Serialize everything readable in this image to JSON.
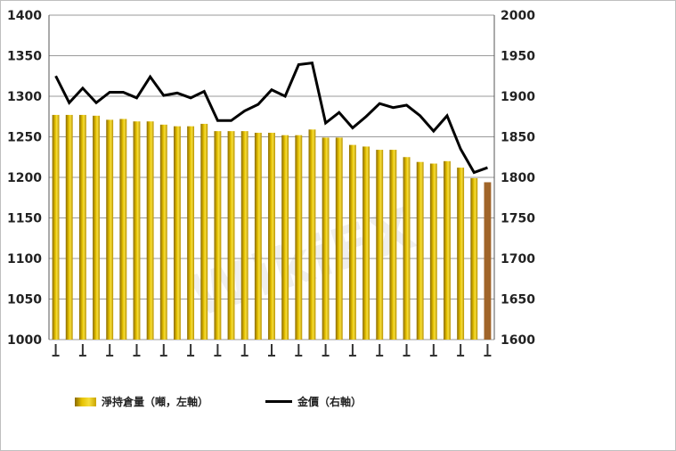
{
  "chart_data": {
    "type": "bar+line",
    "y_left": {
      "ticks": [
        "1400",
        "1350",
        "1300",
        "1250",
        "1200",
        "1150",
        "1100",
        "1050",
        "1000"
      ],
      "min": 1000,
      "max": 1400
    },
    "y_right": {
      "ticks": [
        "2000",
        "1950",
        "1900",
        "1850",
        "1800",
        "1750",
        "1700",
        "1650",
        "1600"
      ],
      "min": 1600,
      "max": 2000
    },
    "bars": {
      "name": "淨持倉量（噸，左軸）",
      "values": [
        1277,
        1277,
        1277,
        1276,
        1271,
        1272,
        1269,
        1269,
        1265,
        1263,
        1263,
        1266,
        1257,
        1257,
        1257,
        1255,
        1255,
        1252,
        1252,
        1259,
        1249,
        1249,
        1240,
        1238,
        1234,
        1234,
        1225,
        1219,
        1217,
        1220,
        1212,
        1199,
        1194
      ],
      "highlight_last_color": "#a0652a"
    },
    "line": {
      "name": "金價（右軸）",
      "values": [
        1925,
        1892,
        1910,
        1892,
        1905,
        1905,
        1898,
        1924,
        1901,
        1904,
        1898,
        1906,
        1870,
        1870,
        1882,
        1890,
        1908,
        1900,
        1939,
        1941,
        1867,
        1880,
        1861,
        1875,
        1891,
        1886,
        1889,
        1876,
        1857,
        1876,
        1835,
        1806,
        1812
      ]
    },
    "grid": true,
    "legend_position": "bottom"
  },
  "legend": {
    "bars_label": "淨持倉量（噸，左軸）",
    "line_label": "金價（右軸）"
  },
  "watermark": "WikiFX",
  "colors": {
    "bar_light": "#f6de3c",
    "bar_mid": "#e0bc00",
    "bar_dark": "#8a6a00",
    "line": "#000000",
    "grid": "#9a9a9a"
  }
}
